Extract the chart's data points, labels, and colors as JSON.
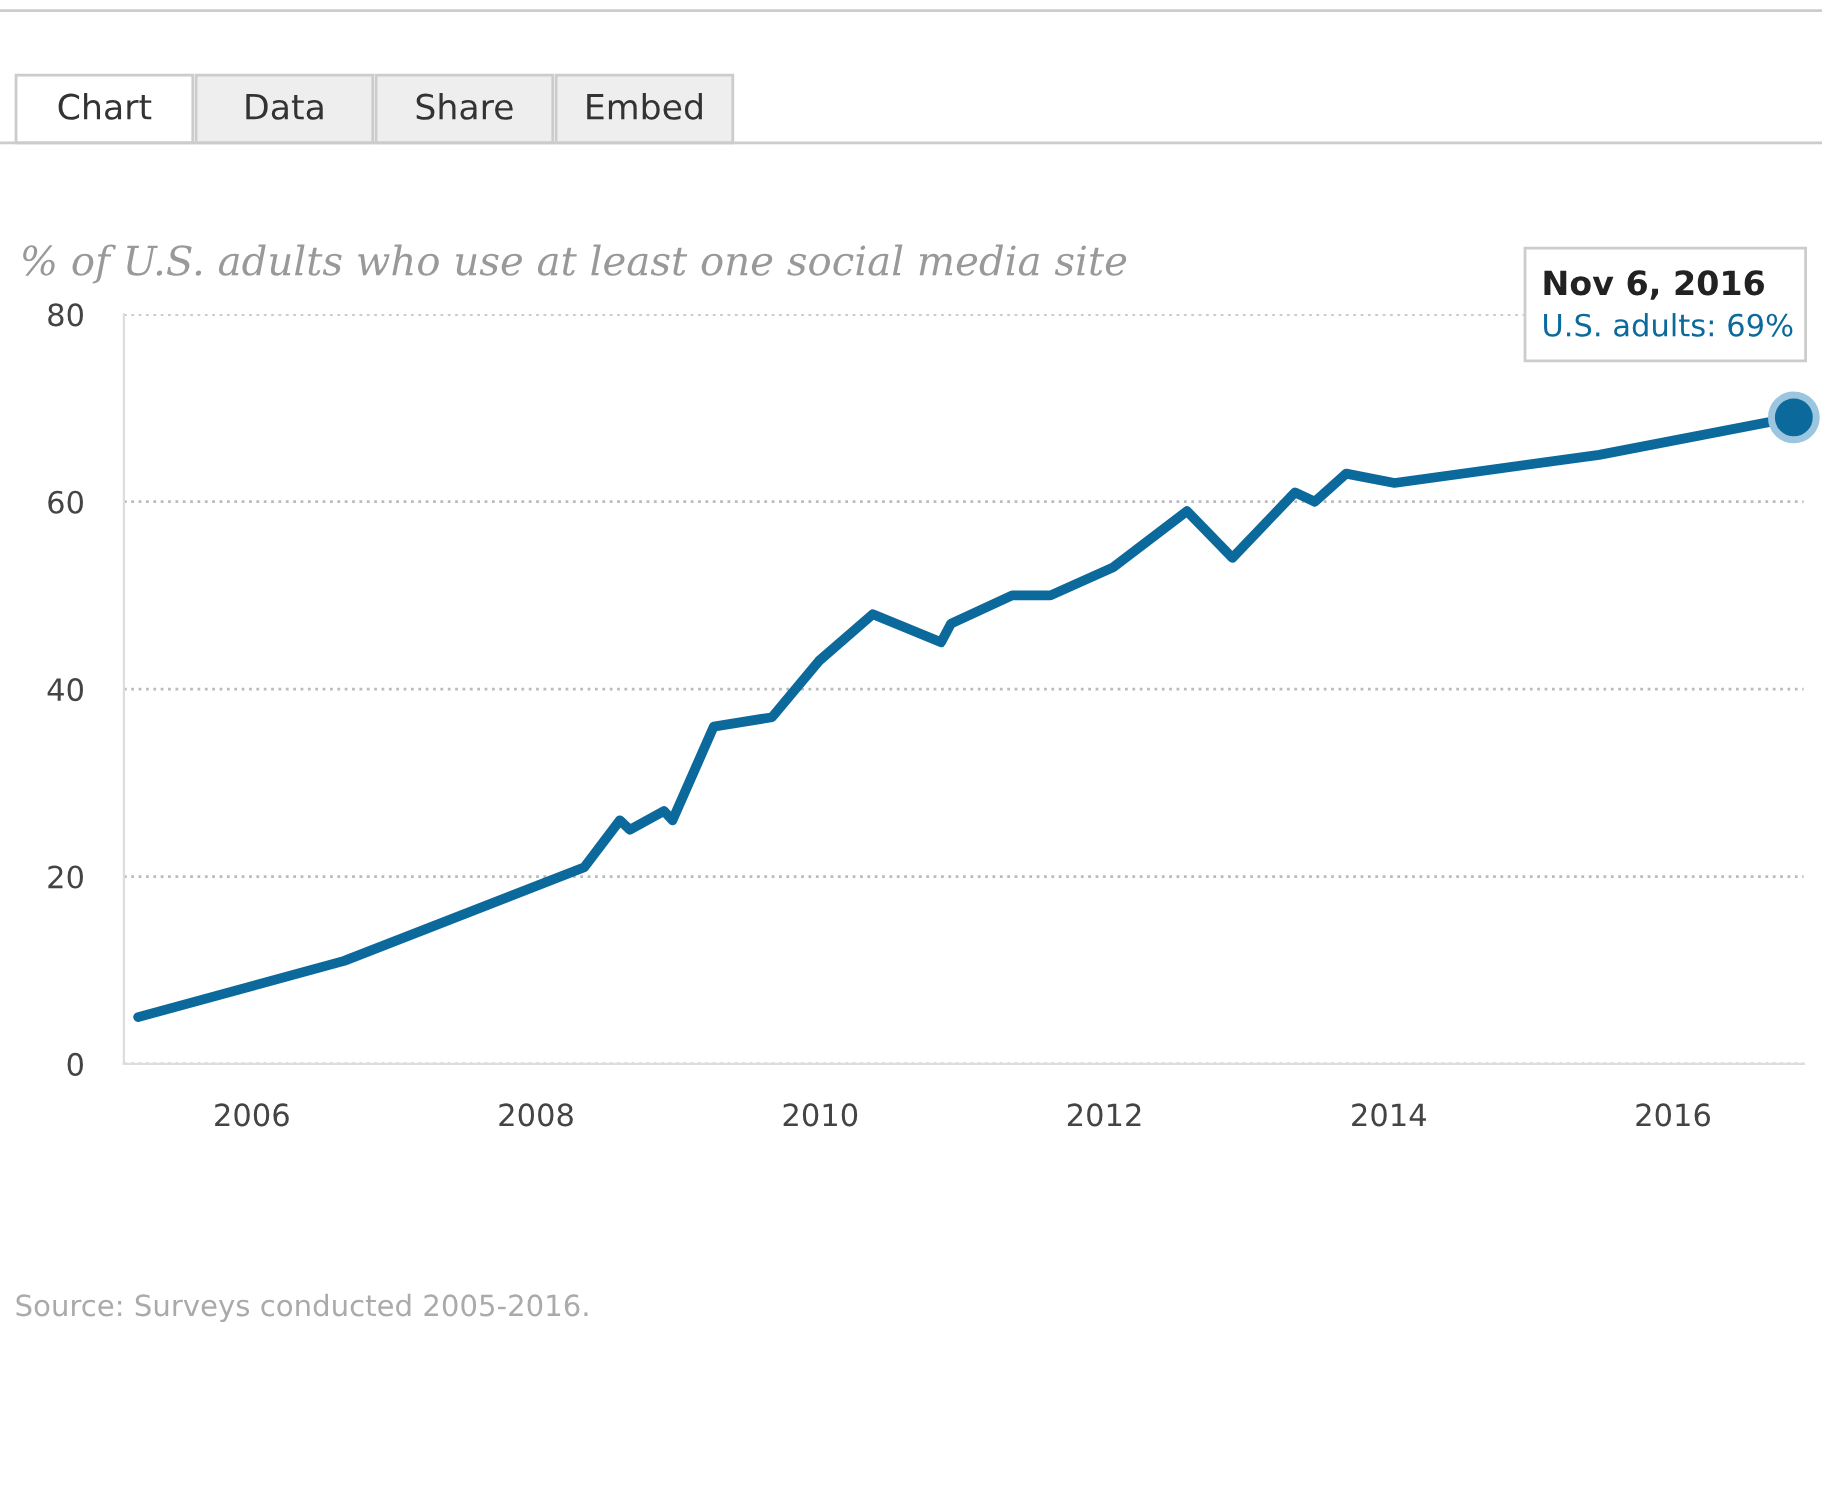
{
  "chart_data": {
    "type": "line",
    "title": "% of U.S. adults who use at least one social media site",
    "x": [
      2005.2,
      2006.65,
      2008.34,
      2008.59,
      2008.66,
      2008.9,
      2008.96,
      2009.25,
      2009.66,
      2009.99,
      2010.37,
      2010.85,
      2010.92,
      2011.35,
      2011.62,
      2012.06,
      2012.58,
      2012.9,
      2013.34,
      2013.48,
      2013.7,
      2014.04,
      2015.48,
      2016.85
    ],
    "series": [
      {
        "color": "#0b6a9b",
        "values": [
          5,
          11,
          21,
          26,
          25,
          27,
          26,
          36,
          37,
          43,
          48,
          45,
          47,
          50,
          50,
          53,
          59,
          54,
          61,
          60,
          63,
          62,
          65,
          69
        ]
      }
    ],
    "xlim": [
      2005.1,
      2016.92
    ],
    "xticks": [
      2006,
      2008,
      2010,
      2012,
      2014,
      2016
    ],
    "ylim": [
      0,
      80
    ],
    "yticks": [
      0,
      20,
      40,
      60,
      80
    ],
    "grid": "y",
    "marker": "none",
    "line_style": "solid",
    "annotations": [
      "Nov 6, 2016",
      "U.S. adults: 69%",
      "Chart",
      "Data",
      "Share",
      "Embed",
      "Source: Surveys conducted 2005-2016."
    ]
  }
}
